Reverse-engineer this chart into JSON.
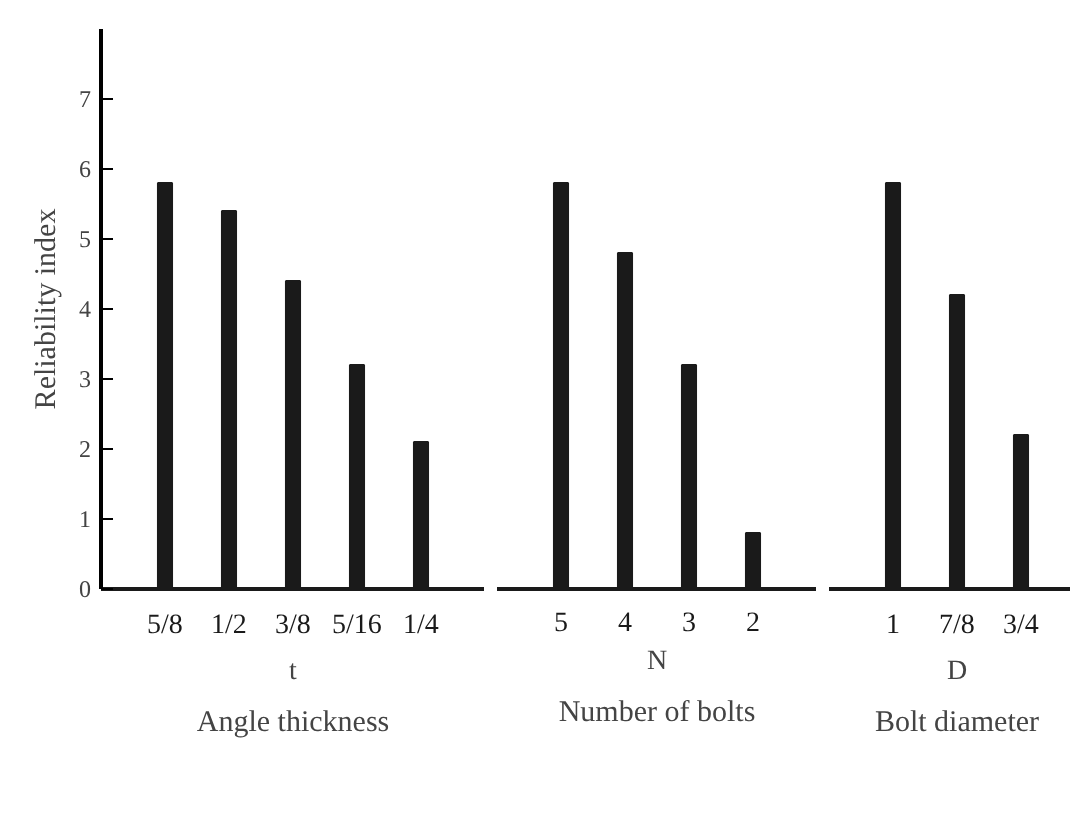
{
  "chart_data": [
    {
      "type": "bar",
      "categories": [
        "5/8",
        "1/2",
        "3/8",
        "5/16",
        "1/4"
      ],
      "values": [
        5.8,
        5.4,
        4.4,
        3.2,
        2.1
      ],
      "color": "#1a1a1a",
      "xlabel": "t",
      "ylabel": "Reliability index",
      "ylim": [
        0,
        8
      ],
      "yticks": [
        0,
        1,
        2,
        3,
        4,
        5,
        6,
        7
      ],
      "annotations": [
        "Angle thickness"
      ]
    },
    {
      "type": "bar",
      "categories": [
        "5",
        "4",
        "3",
        "2"
      ],
      "values": [
        5.8,
        4.8,
        3.2,
        0.8
      ],
      "color": "#1a1a1a",
      "xlabel": "N",
      "ylim": [
        0,
        7
      ],
      "yticks": [
        0,
        1,
        2,
        3,
        4,
        5,
        6,
        7
      ],
      "tick_labels": "x",
      "annotations": [
        "Number of bolts"
      ]
    },
    {
      "type": "bar",
      "categories": [
        "1",
        "7/8",
        "3/4"
      ],
      "values": [
        5.8,
        4.2,
        2.2
      ],
      "color": "#1a1a1a",
      "xlabel": "D",
      "ylim": [
        0,
        7
      ],
      "yticks": [
        0,
        1,
        2,
        3,
        4,
        5,
        6,
        7
      ],
      "tick_labels": "x",
      "annotations": [
        "Bolt diameter"
      ]
    }
  ]
}
